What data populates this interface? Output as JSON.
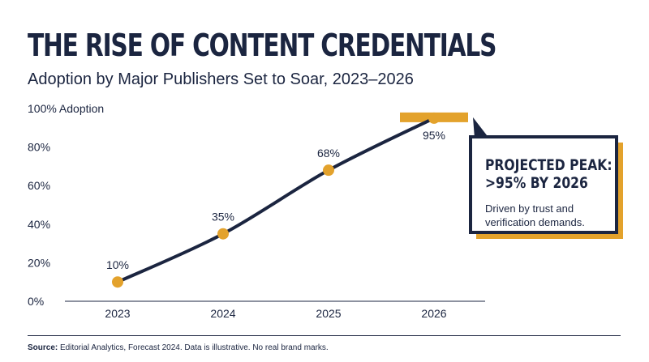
{
  "title": "THE RISE OF CONTENT CREDENTIALS",
  "subtitle": "Adoption by Major Publishers Set to Soar, 2023–2026",
  "colors": {
    "navy": "#1b2540",
    "accent": "#e3a22c",
    "background": "#ffffff"
  },
  "chart_data": {
    "type": "line",
    "x": [
      "2023",
      "2024",
      "2025",
      "2026"
    ],
    "series": [
      {
        "values": [
          10,
          35,
          68,
          95
        ],
        "labels": [
          "10%",
          "35%",
          "68%",
          "95%"
        ]
      }
    ],
    "ylabel": "100% Adoption",
    "yticks": [
      "0%",
      "20%",
      "40%",
      "60%",
      "80%"
    ],
    "ylim": [
      0,
      100
    ],
    "grid": false,
    "highlight": {
      "x": "2026",
      "value": 95
    }
  },
  "callout": {
    "headline_line1": "PROJECTED PEAK:",
    "headline_line2": ">95% BY 2026",
    "body": "Driven by trust and verification demands."
  },
  "footnote": {
    "label": "Source:",
    "text": " Editorial Analytics, Forecast 2024. Data is illustrative. No real brand marks."
  }
}
